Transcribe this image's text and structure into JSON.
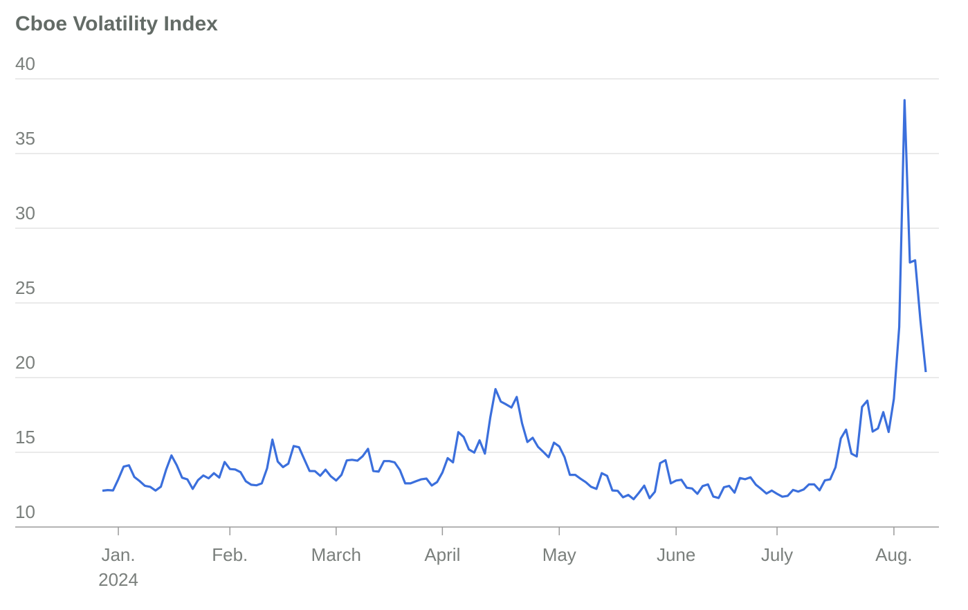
{
  "chart_data": {
    "type": "line",
    "title": "Cboe Volatility Index",
    "x_sublabel": "2024",
    "categories": [
      null,
      null,
      null,
      "Jan.",
      null,
      null,
      null,
      null,
      null,
      null,
      null,
      null,
      null,
      null,
      null,
      null,
      null,
      null,
      null,
      null,
      null,
      null,
      null,
      null,
      "Feb.",
      null,
      null,
      null,
      null,
      null,
      null,
      null,
      null,
      null,
      null,
      null,
      null,
      null,
      null,
      null,
      null,
      null,
      null,
      null,
      "March",
      null,
      null,
      null,
      null,
      null,
      null,
      null,
      null,
      null,
      null,
      null,
      null,
      null,
      null,
      null,
      null,
      null,
      null,
      null,
      "April",
      null,
      null,
      null,
      null,
      null,
      null,
      null,
      null,
      null,
      null,
      null,
      null,
      null,
      null,
      null,
      null,
      null,
      null,
      null,
      null,
      null,
      "May",
      null,
      null,
      null,
      null,
      null,
      null,
      null,
      null,
      null,
      null,
      null,
      null,
      null,
      null,
      null,
      null,
      null,
      null,
      null,
      null,
      null,
      "June",
      null,
      null,
      null,
      null,
      null,
      null,
      null,
      null,
      null,
      null,
      null,
      null,
      null,
      null,
      null,
      null,
      null,
      null,
      "July",
      null,
      null,
      null,
      null,
      null,
      null,
      null,
      null,
      null,
      null,
      null,
      null,
      null,
      null,
      null,
      null,
      null,
      null,
      null,
      null,
      null,
      "Aug.",
      null,
      null,
      null,
      null,
      null,
      null
    ],
    "series": [
      {
        "name": "Cboe Volatility Index",
        "color": "#3b6fdc",
        "values": [
          12.43,
          12.47,
          12.45,
          13.2,
          14.04,
          14.13,
          13.35,
          13.08,
          12.76,
          12.69,
          12.44,
          12.7,
          13.84,
          14.79,
          14.13,
          13.3,
          13.19,
          12.55,
          13.14,
          13.45,
          13.26,
          13.6,
          13.31,
          14.35,
          13.88,
          13.85,
          13.67,
          13.06,
          12.83,
          12.79,
          12.92,
          13.93,
          15.85,
          14.38,
          14.01,
          14.24,
          15.42,
          15.34,
          14.54,
          13.75,
          13.74,
          13.43,
          13.84,
          13.4,
          13.11,
          13.49,
          14.46,
          14.5,
          14.44,
          14.74,
          15.23,
          13.75,
          13.71,
          14.41,
          14.41,
          14.33,
          13.82,
          12.92,
          12.92,
          13.06,
          13.19,
          13.24,
          12.78,
          13.01,
          13.65,
          14.61,
          14.33,
          16.35,
          16.03,
          15.19,
          14.98,
          15.8,
          14.91,
          17.31,
          19.23,
          18.4,
          18.21,
          18.0,
          18.71,
          16.94,
          15.69,
          15.97,
          15.37,
          15.03,
          14.67,
          15.65,
          15.39,
          14.68,
          13.49,
          13.49,
          13.23,
          13.0,
          12.69,
          12.55,
          13.6,
          13.42,
          12.45,
          12.42,
          11.99,
          12.15,
          11.86,
          12.29,
          12.77,
          11.93,
          12.36,
          14.28,
          14.47,
          12.92,
          13.11,
          13.16,
          12.63,
          12.58,
          12.22,
          12.74,
          12.85,
          12.04,
          11.94,
          12.66,
          12.75,
          12.3,
          13.28,
          13.2,
          13.33,
          12.84,
          12.55,
          12.24,
          12.44,
          12.22,
          12.03,
          12.09,
          12.48,
          12.37,
          12.51,
          12.85,
          12.85,
          12.46,
          13.12,
          13.19,
          14.0,
          15.93,
          16.52,
          14.91,
          14.72,
          18.04,
          18.46,
          16.39,
          16.6,
          17.69,
          16.36,
          18.59,
          23.39,
          38.57,
          27.71,
          27.85,
          23.79,
          20.37
        ]
      }
    ],
    "ylim": [
      10,
      40
    ],
    "yticks": [
      10,
      15,
      20,
      25,
      30,
      35,
      40
    ],
    "grid": true
  }
}
